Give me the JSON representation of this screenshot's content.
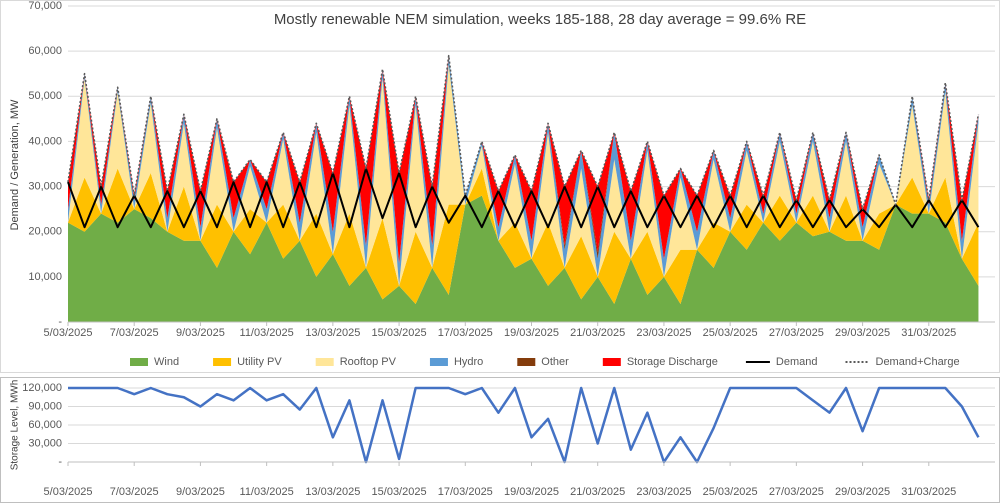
{
  "chart_data": [
    {
      "type": "area",
      "title": "Mostly renewable NEM simulation, weeks 185-188, 28 day average = 99.6% RE",
      "y_label": "Demand / Generation, MW",
      "x": [
        0,
        0.5,
        1,
        1.5,
        2,
        2.5,
        3,
        3.5,
        4,
        4.5,
        5,
        5.5,
        6,
        6.5,
        7,
        7.5,
        8,
        8.5,
        9,
        9.5,
        10,
        10.5,
        11,
        11.5,
        12,
        12.5,
        13,
        13.5,
        14,
        14.5,
        15,
        15.5,
        16,
        16.5,
        17,
        17.5,
        18,
        18.5,
        19,
        19.5,
        20,
        20.5,
        21,
        21.5,
        22,
        22.5,
        23,
        23.5,
        24,
        24.5,
        25,
        25.5,
        26,
        26.5,
        27,
        27.5
      ],
      "xlim": [
        0,
        28
      ],
      "xticks": [
        {
          "value": 0,
          "label": "5/03/2025"
        },
        {
          "value": 2,
          "label": "7/03/2025"
        },
        {
          "value": 4,
          "label": "9/03/2025"
        },
        {
          "value": 6,
          "label": "11/03/2025"
        },
        {
          "value": 8,
          "label": "13/03/2025"
        },
        {
          "value": 10,
          "label": "15/03/2025"
        },
        {
          "value": 12,
          "label": "17/03/2025"
        },
        {
          "value": 14,
          "label": "19/03/2025"
        },
        {
          "value": 16,
          "label": "21/03/2025"
        },
        {
          "value": 18,
          "label": "23/03/2025"
        },
        {
          "value": 20,
          "label": "25/03/2025"
        },
        {
          "value": 22,
          "label": "27/03/2025"
        },
        {
          "value": 24,
          "label": "29/03/2025"
        },
        {
          "value": 26,
          "label": "31/03/2025"
        }
      ],
      "ylim": [
        0,
        70000
      ],
      "yticks": [
        {
          "value": 0,
          "label": "-"
        },
        {
          "value": 10000,
          "label": "10,000"
        },
        {
          "value": 20000,
          "label": "20,000"
        },
        {
          "value": 30000,
          "label": "30,000"
        },
        {
          "value": 40000,
          "label": "40,000"
        },
        {
          "value": 50000,
          "label": "50,000"
        },
        {
          "value": 60000,
          "label": "60,000"
        },
        {
          "value": 70000,
          "label": "70,000"
        }
      ],
      "grid": true,
      "series": [
        {
          "name": "Wind",
          "type": "area",
          "color": "#70ad47",
          "values": [
            22000,
            20000,
            24000,
            22000,
            25000,
            23000,
            20000,
            18000,
            18000,
            12000,
            20000,
            15000,
            22000,
            14000,
            18000,
            10000,
            15000,
            8000,
            12000,
            5000,
            8000,
            4000,
            12000,
            6000,
            26000,
            28000,
            18000,
            12000,
            14000,
            8000,
            12000,
            5000,
            10000,
            4000,
            14000,
            6000,
            10000,
            4000,
            16000,
            12000,
            20000,
            16000,
            22000,
            18000,
            22000,
            19000,
            20000,
            18000,
            18000,
            16000,
            26000,
            24000,
            24000,
            22000,
            14000,
            8000
          ]
        },
        {
          "name": "Utility PV",
          "type": "area",
          "color": "#ffc000",
          "values": [
            0,
            12000,
            0,
            12000,
            0,
            10000,
            0,
            12000,
            0,
            14000,
            0,
            10000,
            0,
            12000,
            0,
            14000,
            0,
            16000,
            0,
            18000,
            0,
            16000,
            0,
            20000,
            0,
            6000,
            0,
            10000,
            0,
            14000,
            0,
            14000,
            0,
            16000,
            0,
            14000,
            0,
            12000,
            0,
            10000,
            0,
            10000,
            0,
            10000,
            0,
            9000,
            0,
            10000,
            0,
            8000,
            0,
            8000,
            0,
            10000,
            0,
            14000
          ]
        },
        {
          "name": "Rooftop PV",
          "type": "area",
          "color": "#ffe699",
          "values": [
            0,
            22000,
            0,
            17000,
            0,
            15500,
            0,
            14000,
            0,
            17000,
            0,
            9500,
            0,
            14500,
            0,
            18000,
            0,
            24000,
            0,
            31000,
            0,
            28000,
            0,
            31000,
            0,
            5000,
            0,
            13000,
            0,
            20000,
            0,
            15000,
            0,
            16000,
            0,
            18000,
            0,
            16000,
            0,
            14000,
            0,
            12000,
            0,
            12000,
            0,
            12000,
            0,
            12000,
            0,
            11000,
            0,
            16000,
            0,
            19000,
            0,
            22000
          ]
        },
        {
          "name": "Hydro",
          "type": "area",
          "color": "#5b9bd5",
          "values": [
            3000,
            1000,
            2000,
            1000,
            2000,
            1500,
            3000,
            2000,
            3000,
            2000,
            3000,
            1500,
            3000,
            1500,
            4000,
            2000,
            5000,
            2000,
            5000,
            2000,
            5000,
            2000,
            5000,
            2000,
            2000,
            1000,
            3000,
            2000,
            4000,
            2000,
            4000,
            4000,
            4000,
            6000,
            4000,
            2000,
            4000,
            2000,
            4000,
            2000,
            3000,
            2000,
            2000,
            2000,
            2000,
            2000,
            3000,
            2000,
            3000,
            2000,
            0,
            2000,
            2000,
            2000,
            4000,
            2000
          ]
        },
        {
          "name": "Other",
          "type": "area",
          "color": "#843c0c",
          "values": [
            0,
            0,
            0,
            0,
            0,
            0,
            0,
            0,
            0,
            0,
            0,
            0,
            0,
            0,
            0,
            0,
            0,
            0,
            0,
            0,
            0,
            0,
            0,
            0,
            0,
            0,
            0,
            0,
            0,
            0,
            1000,
            0,
            1500,
            0,
            0,
            0,
            0,
            0,
            0,
            0,
            0,
            0,
            0,
            0,
            0,
            0,
            0,
            0,
            0,
            0,
            0,
            0,
            0,
            0,
            0,
            0
          ]
        },
        {
          "name": "Storage Discharge",
          "type": "area",
          "color": "#ff0000",
          "values": [
            6000,
            0,
            4000,
            0,
            1000,
            0,
            6000,
            0,
            8000,
            0,
            8000,
            0,
            6000,
            0,
            9000,
            0,
            13000,
            0,
            17000,
            0,
            20000,
            0,
            13000,
            0,
            0,
            0,
            8000,
            0,
            11000,
            0,
            13000,
            0,
            14500,
            0,
            11000,
            0,
            14000,
            0,
            8000,
            0,
            5000,
            0,
            4000,
            0,
            3000,
            0,
            4000,
            0,
            4000,
            0,
            0,
            0,
            1000,
            0,
            9000,
            0
          ]
        },
        {
          "name": "Demand",
          "type": "line",
          "color": "#000000",
          "values": [
            31000,
            21000,
            30000,
            21000,
            28000,
            21000,
            29000,
            21000,
            29000,
            21000,
            31000,
            21000,
            31000,
            21000,
            31000,
            21000,
            33000,
            21000,
            34000,
            23000,
            33000,
            21000,
            30000,
            22000,
            28000,
            21000,
            29000,
            21000,
            29000,
            21000,
            30000,
            21000,
            30000,
            21000,
            29000,
            21000,
            28000,
            21000,
            28000,
            21000,
            28000,
            21000,
            28000,
            21000,
            27000,
            21000,
            27000,
            21000,
            25000,
            21000,
            26000,
            21000,
            27000,
            21000,
            27000,
            21000
          ]
        },
        {
          "name": "Demand+Charge",
          "type": "line",
          "style": "dotted",
          "color": "#595959",
          "values": [
            31000,
            55000,
            30000,
            52000,
            28000,
            50000,
            29000,
            46000,
            29000,
            45000,
            31000,
            36000,
            31000,
            42000,
            31000,
            44000,
            33000,
            50000,
            34000,
            56000,
            33000,
            50000,
            30000,
            59000,
            28000,
            40000,
            29000,
            37000,
            29000,
            44000,
            30000,
            38000,
            30000,
            42000,
            29000,
            40000,
            28000,
            34000,
            28000,
            38000,
            28000,
            40000,
            28000,
            42000,
            27000,
            42000,
            27000,
            42000,
            25000,
            37000,
            26000,
            50000,
            27000,
            53000,
            27000,
            46000
          ]
        }
      ]
    },
    {
      "type": "line",
      "y_label": "Storage Level, MWh",
      "x": [
        0,
        0.5,
        1,
        1.5,
        2,
        2.5,
        3,
        3.5,
        4,
        4.5,
        5,
        5.5,
        6,
        6.5,
        7,
        7.5,
        8,
        8.5,
        9,
        9.5,
        10,
        10.5,
        11,
        11.5,
        12,
        12.5,
        13,
        13.5,
        14,
        14.5,
        15,
        15.5,
        16,
        16.5,
        17,
        17.5,
        18,
        18.5,
        19,
        19.5,
        20,
        20.5,
        21,
        21.5,
        22,
        22.5,
        23,
        23.5,
        24,
        24.5,
        25,
        25.5,
        26,
        26.5,
        27,
        27.5
      ],
      "xlim": [
        0,
        28
      ],
      "xticks": [
        {
          "value": 0,
          "label": "5/03/2025"
        },
        {
          "value": 2,
          "label": "7/03/2025"
        },
        {
          "value": 4,
          "label": "9/03/2025"
        },
        {
          "value": 6,
          "label": "11/03/2025"
        },
        {
          "value": 8,
          "label": "13/03/2025"
        },
        {
          "value": 10,
          "label": "15/03/2025"
        },
        {
          "value": 12,
          "label": "17/03/2025"
        },
        {
          "value": 14,
          "label": "19/03/2025"
        },
        {
          "value": 16,
          "label": "21/03/2025"
        },
        {
          "value": 18,
          "label": "23/03/2025"
        },
        {
          "value": 20,
          "label": "25/03/2025"
        },
        {
          "value": 22,
          "label": "27/03/2025"
        },
        {
          "value": 24,
          "label": "29/03/2025"
        },
        {
          "value": 26,
          "label": "31/03/2025"
        }
      ],
      "ylim": [
        0,
        120000
      ],
      "yticks": [
        {
          "value": 0,
          "label": "-"
        },
        {
          "value": 30000,
          "label": "30,000"
        },
        {
          "value": 60000,
          "label": "60,000"
        },
        {
          "value": 90000,
          "label": "90,000"
        },
        {
          "value": 120000,
          "label": "120,000"
        }
      ],
      "grid": true,
      "series": [
        {
          "type": "line",
          "color": "#4472c4",
          "values": [
            120000,
            120000,
            120000,
            120000,
            110000,
            120000,
            110000,
            105000,
            90000,
            110000,
            100000,
            120000,
            100000,
            110000,
            85000,
            120000,
            40000,
            100000,
            0,
            100000,
            5000,
            120000,
            120000,
            120000,
            110000,
            120000,
            80000,
            120000,
            40000,
            70000,
            0,
            120000,
            30000,
            120000,
            20000,
            80000,
            0,
            40000,
            0,
            55000,
            120000,
            120000,
            120000,
            120000,
            120000,
            100000,
            80000,
            120000,
            50000,
            120000,
            120000,
            120000,
            120000,
            120000,
            90000,
            40000
          ]
        }
      ]
    }
  ]
}
